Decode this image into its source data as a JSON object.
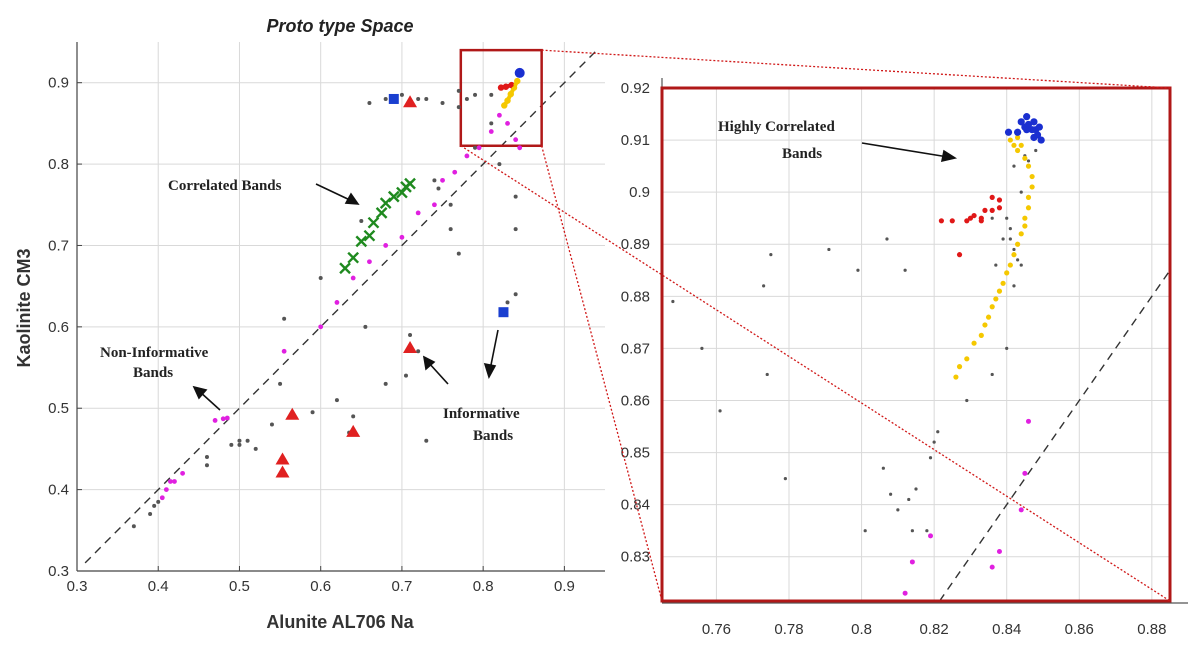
{
  "chart_data": [
    {
      "type": "scatter",
      "panel": "main",
      "title": "Proto type Space",
      "xlabel": "Alunite AL706 Na",
      "ylabel": "Kaolinite CM3",
      "xlim": [
        0.3,
        0.95
      ],
      "ylim": [
        0.3,
        0.95
      ],
      "xticks": [
        0.3,
        0.4,
        0.5,
        0.6,
        0.7,
        0.8,
        0.9
      ],
      "yticks": [
        0.3,
        0.4,
        0.5,
        0.6,
        0.7,
        0.8,
        0.9
      ],
      "grid": true,
      "reference_line": "y = x",
      "series": [
        {
          "name": "gray bands",
          "color": "#555555",
          "marker": "dot",
          "points": [
            [
              0.37,
              0.355
            ],
            [
              0.39,
              0.37
            ],
            [
              0.395,
              0.38
            ],
            [
              0.4,
              0.385
            ],
            [
              0.46,
              0.43
            ],
            [
              0.49,
              0.455
            ],
            [
              0.5,
              0.46
            ],
            [
              0.51,
              0.46
            ],
            [
              0.55,
              0.53
            ],
            [
              0.555,
              0.61
            ],
            [
              0.59,
              0.495
            ],
            [
              0.6,
              0.66
            ],
            [
              0.62,
              0.51
            ],
            [
              0.635,
              0.47
            ],
            [
              0.64,
              0.49
            ],
            [
              0.65,
              0.73
            ],
            [
              0.655,
              0.6
            ],
            [
              0.68,
              0.53
            ],
            [
              0.705,
              0.54
            ],
            [
              0.71,
              0.59
            ],
            [
              0.72,
              0.57
            ],
            [
              0.73,
              0.46
            ],
            [
              0.745,
              0.77
            ],
            [
              0.76,
              0.75
            ],
            [
              0.76,
              0.72
            ],
            [
              0.77,
              0.69
            ],
            [
              0.74,
              0.78
            ],
            [
              0.77,
              0.87
            ],
            [
              0.78,
              0.88
            ],
            [
              0.79,
              0.82
            ],
            [
              0.81,
              0.85
            ],
            [
              0.82,
              0.8
            ],
            [
              0.84,
              0.76
            ],
            [
              0.84,
              0.72
            ],
            [
              0.84,
              0.64
            ],
            [
              0.83,
              0.63
            ],
            [
              0.72,
              0.88
            ],
            [
              0.73,
              0.88
            ],
            [
              0.75,
              0.875
            ],
            [
              0.77,
              0.89
            ],
            [
              0.79,
              0.885
            ],
            [
              0.81,
              0.885
            ],
            [
              0.7,
              0.885
            ],
            [
              0.71,
              0.875
            ],
            [
              0.68,
              0.88
            ],
            [
              0.66,
              0.875
            ],
            [
              0.5,
              0.455
            ],
            [
              0.52,
              0.45
            ],
            [
              0.46,
              0.44
            ],
            [
              0.54,
              0.48
            ]
          ]
        },
        {
          "name": "magenta bands",
          "color": "#e020e0",
          "marker": "dot",
          "points": [
            [
              0.405,
              0.39
            ],
            [
              0.41,
              0.4
            ],
            [
              0.415,
              0.41
            ],
            [
              0.42,
              0.41
            ],
            [
              0.43,
              0.42
            ],
            [
              0.47,
              0.485
            ],
            [
              0.48,
              0.487
            ],
            [
              0.485,
              0.488
            ],
            [
              0.555,
              0.57
            ],
            [
              0.6,
              0.6
            ],
            [
              0.62,
              0.63
            ],
            [
              0.64,
              0.66
            ],
            [
              0.66,
              0.68
            ],
            [
              0.68,
              0.7
            ],
            [
              0.7,
              0.71
            ],
            [
              0.72,
              0.74
            ],
            [
              0.74,
              0.75
            ],
            [
              0.75,
              0.78
            ],
            [
              0.765,
              0.79
            ],
            [
              0.78,
              0.81
            ],
            [
              0.795,
              0.82
            ],
            [
              0.81,
              0.84
            ],
            [
              0.82,
              0.86
            ],
            [
              0.83,
              0.85
            ],
            [
              0.84,
              0.83
            ],
            [
              0.845,
              0.82
            ]
          ]
        },
        {
          "name": "Correlated Bands",
          "color": "#1f8a1f",
          "marker": "x",
          "points": [
            [
              0.63,
              0.672
            ],
            [
              0.64,
              0.685
            ],
            [
              0.65,
              0.705
            ],
            [
              0.66,
              0.712
            ],
            [
              0.665,
              0.728
            ],
            [
              0.675,
              0.74
            ],
            [
              0.68,
              0.752
            ],
            [
              0.69,
              0.76
            ],
            [
              0.7,
              0.765
            ],
            [
              0.705,
              0.772
            ],
            [
              0.71,
              0.776
            ]
          ]
        },
        {
          "name": "Informative Bands (triangles)",
          "color": "#e02020",
          "marker": "triangle",
          "points": [
            [
              0.553,
              0.421
            ],
            [
              0.553,
              0.437
            ],
            [
              0.565,
              0.492
            ],
            [
              0.64,
              0.471
            ],
            [
              0.71,
              0.574
            ],
            [
              0.71,
              0.876
            ]
          ]
        },
        {
          "name": "Informative Bands (squares)",
          "color": "#1a3fd0",
          "marker": "square",
          "points": [
            [
              0.69,
              0.88
            ],
            [
              0.825,
              0.618
            ]
          ]
        },
        {
          "name": "highly correlated yellow",
          "color": "#f5c800",
          "marker": "dot",
          "points": [
            [
              0.826,
              0.872
            ],
            [
              0.83,
              0.878
            ],
            [
              0.834,
              0.886
            ],
            [
              0.838,
              0.894
            ],
            [
              0.842,
              0.902
            ]
          ]
        },
        {
          "name": "highly correlated red",
          "color": "#e01818",
          "marker": "dot",
          "points": [
            [
              0.822,
              0.894
            ],
            [
              0.828,
              0.895
            ],
            [
              0.835,
              0.897
            ]
          ]
        },
        {
          "name": "highly correlated blue",
          "color": "#1a2fd0",
          "marker": "dot",
          "points": [
            [
              0.843,
              0.912
            ],
            [
              0.846,
              0.911
            ]
          ]
        }
      ]
    },
    {
      "type": "scatter",
      "panel": "zoom",
      "title": "",
      "xlim": [
        0.745,
        0.885
      ],
      "ylim": [
        0.8215,
        0.92
      ],
      "xticks": [
        0.76,
        0.78,
        0.8,
        0.82,
        0.84,
        0.86,
        0.88
      ],
      "xtick_labels": [
        "0.76",
        "0.78",
        "0.8",
        "0.82",
        "0.84",
        "0.86",
        "0.88"
      ],
      "yticks": [
        0.83,
        0.84,
        0.85,
        0.86,
        0.87,
        0.88,
        0.89,
        0.9,
        0.91,
        0.92
      ],
      "ytick_labels": [
        "0.83",
        "0.84",
        "0.85",
        "0.86",
        "0.87",
        "0.88",
        "0.89",
        "0.9",
        "0.91",
        "0.92"
      ],
      "grid": true,
      "reference_line": "y = x",
      "series": [
        {
          "name": "gray bands",
          "color": "#555555",
          "marker": "dot",
          "points": [
            [
              0.748,
              0.879
            ],
            [
              0.756,
              0.87
            ],
            [
              0.761,
              0.858
            ],
            [
              0.773,
              0.882
            ],
            [
              0.774,
              0.865
            ],
            [
              0.775,
              0.888
            ],
            [
              0.779,
              0.845
            ],
            [
              0.791,
              0.889
            ],
            [
              0.799,
              0.885
            ],
            [
              0.801,
              0.835
            ],
            [
              0.806,
              0.847
            ],
            [
              0.807,
              0.891
            ],
            [
              0.808,
              0.842
            ],
            [
              0.81,
              0.839
            ],
            [
              0.812,
              0.885
            ],
            [
              0.813,
              0.841
            ],
            [
              0.814,
              0.835
            ],
            [
              0.815,
              0.843
            ],
            [
              0.818,
              0.835
            ],
            [
              0.819,
              0.849
            ],
            [
              0.82,
              0.852
            ],
            [
              0.821,
              0.854
            ],
            [
              0.829,
              0.86
            ],
            [
              0.836,
              0.865
            ],
            [
              0.84,
              0.87
            ],
            [
              0.842,
              0.882
            ],
            [
              0.843,
              0.887
            ],
            [
              0.844,
              0.886
            ],
            [
              0.842,
              0.889
            ],
            [
              0.841,
              0.893
            ],
            [
              0.84,
              0.895
            ],
            [
              0.838,
              0.897
            ],
            [
              0.836,
              0.895
            ],
            [
              0.839,
              0.891
            ],
            [
              0.841,
              0.891
            ],
            [
              0.837,
              0.886
            ],
            [
              0.844,
              0.9
            ],
            [
              0.842,
              0.905
            ],
            [
              0.845,
              0.907
            ],
            [
              0.846,
              0.906
            ],
            [
              0.848,
              0.908
            ]
          ]
        },
        {
          "name": "magenta bands",
          "color": "#e020e0",
          "marker": "dot",
          "points": [
            [
              0.812,
              0.823
            ],
            [
              0.814,
              0.829
            ],
            [
              0.819,
              0.834
            ],
            [
              0.836,
              0.828
            ],
            [
              0.838,
              0.831
            ],
            [
              0.844,
              0.839
            ],
            [
              0.845,
              0.846
            ],
            [
              0.846,
              0.856
            ]
          ]
        },
        {
          "name": "highly correlated yellow",
          "color": "#f5c800",
          "marker": "dot",
          "points": [
            [
              0.826,
              0.8645
            ],
            [
              0.827,
              0.8665
            ],
            [
              0.829,
              0.868
            ],
            [
              0.831,
              0.871
            ],
            [
              0.833,
              0.8725
            ],
            [
              0.834,
              0.8745
            ],
            [
              0.835,
              0.876
            ],
            [
              0.836,
              0.878
            ],
            [
              0.837,
              0.8795
            ],
            [
              0.838,
              0.881
            ],
            [
              0.839,
              0.8825
            ],
            [
              0.84,
              0.8845
            ],
            [
              0.841,
              0.886
            ],
            [
              0.842,
              0.888
            ],
            [
              0.843,
              0.89
            ],
            [
              0.844,
              0.892
            ],
            [
              0.845,
              0.8935
            ],
            [
              0.845,
              0.895
            ],
            [
              0.846,
              0.897
            ],
            [
              0.846,
              0.899
            ],
            [
              0.847,
              0.901
            ],
            [
              0.847,
              0.903
            ],
            [
              0.846,
              0.905
            ],
            [
              0.845,
              0.9065
            ],
            [
              0.843,
              0.908
            ],
            [
              0.842,
              0.909
            ],
            [
              0.841,
              0.91
            ],
            [
              0.843,
              0.9105
            ],
            [
              0.844,
              0.909
            ]
          ]
        },
        {
          "name": "highly correlated red",
          "color": "#e01818",
          "marker": "dot",
          "points": [
            [
              0.822,
              0.8945
            ],
            [
              0.825,
              0.8945
            ],
            [
              0.829,
              0.8945
            ],
            [
              0.831,
              0.8955
            ],
            [
              0.833,
              0.895
            ],
            [
              0.834,
              0.8965
            ],
            [
              0.836,
              0.8965
            ],
            [
              0.838,
              0.897
            ],
            [
              0.836,
              0.899
            ],
            [
              0.838,
              0.8985
            ],
            [
              0.833,
              0.8945
            ],
            [
              0.83,
              0.895
            ],
            [
              0.827,
              0.888
            ]
          ]
        },
        {
          "name": "highly correlated blue",
          "color": "#1a2fd0",
          "marker": "dot",
          "points": [
            [
              0.8405,
              0.9115
            ],
            [
              0.844,
              0.9135
            ],
            [
              0.8455,
              0.9145
            ],
            [
              0.846,
              0.913
            ],
            [
              0.8475,
              0.9135
            ],
            [
              0.848,
              0.912
            ],
            [
              0.849,
              0.9125
            ],
            [
              0.8485,
              0.911
            ],
            [
              0.8495,
              0.91
            ],
            [
              0.8475,
              0.9105
            ],
            [
              0.847,
              0.912
            ],
            [
              0.8455,
              0.912
            ],
            [
              0.843,
              0.9115
            ],
            [
              0.845,
              0.9125
            ]
          ]
        }
      ]
    }
  ],
  "annotations": {
    "correlated": "Correlated Bands",
    "non_informative_1": "Non-Informative",
    "non_informative_2": "Bands",
    "informative_1": "Informative",
    "informative_2": "Bands",
    "highly_1": "Highly Correlated",
    "highly_2": "Bands"
  }
}
